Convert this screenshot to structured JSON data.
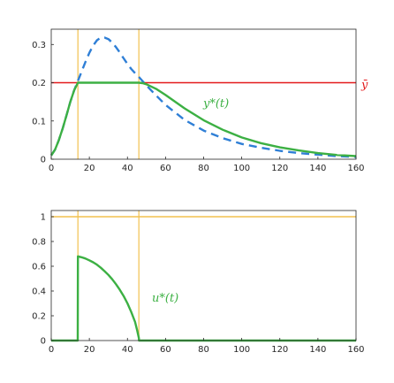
{
  "chart_data": [
    {
      "type": "line",
      "title": "",
      "xlabel": "",
      "ylabel": "",
      "xlim": [
        0,
        160
      ],
      "ylim": [
        0,
        0.34
      ],
      "x_ticks": [
        "0",
        "20",
        "40",
        "60",
        "80",
        "100",
        "120",
        "140",
        "160"
      ],
      "y_ticks": [
        "0",
        "0.1",
        "0.2",
        "0.3"
      ],
      "grid": false,
      "vlines": [
        14,
        46
      ],
      "hline": {
        "value": 0.2,
        "label": "ȳ",
        "color": "#e31a1c"
      },
      "series": [
        {
          "label": "y*(t)",
          "style": "solid",
          "color": "#3cb043",
          "x": [
            0,
            2,
            4,
            6,
            8,
            10,
            12,
            14,
            20,
            30,
            40,
            46,
            48,
            50,
            55,
            60,
            70,
            80,
            90,
            100,
            110,
            120,
            130,
            140,
            150,
            160
          ],
          "values": [
            0.01,
            0.025,
            0.05,
            0.08,
            0.115,
            0.15,
            0.18,
            0.2,
            0.2,
            0.2,
            0.2,
            0.2,
            0.199,
            0.196,
            0.184,
            0.168,
            0.133,
            0.102,
            0.077,
            0.057,
            0.042,
            0.031,
            0.023,
            0.016,
            0.011,
            0.008
          ]
        },
        {
          "label": "",
          "style": "dashed",
          "color": "#2f7fd6",
          "x": [
            0,
            2,
            4,
            6,
            8,
            10,
            12,
            14,
            16,
            18,
            20,
            22,
            24,
            26,
            28,
            30,
            32,
            34,
            36,
            38,
            40,
            42,
            44,
            46,
            50,
            55,
            60,
            70,
            80,
            90,
            100,
            110,
            120,
            130,
            140,
            150,
            160
          ],
          "values": [
            0.01,
            0.025,
            0.05,
            0.08,
            0.115,
            0.15,
            0.18,
            0.205,
            0.23,
            0.255,
            0.278,
            0.297,
            0.311,
            0.318,
            0.318,
            0.314,
            0.305,
            0.293,
            0.279,
            0.264,
            0.249,
            0.236,
            0.225,
            0.215,
            0.193,
            0.167,
            0.142,
            0.103,
            0.075,
            0.055,
            0.04,
            0.03,
            0.022,
            0.016,
            0.012,
            0.008,
            0.006
          ]
        }
      ]
    },
    {
      "type": "line",
      "title": "",
      "xlabel": "",
      "ylabel": "",
      "xlim": [
        0,
        160
      ],
      "ylim": [
        0,
        1.05
      ],
      "x_ticks": [
        "0",
        "20",
        "40",
        "60",
        "80",
        "100",
        "120",
        "140",
        "160"
      ],
      "y_ticks": [
        "0",
        "0.2",
        "0.4",
        "0.6",
        "0.8",
        "1"
      ],
      "grid": false,
      "vlines": [
        14,
        46
      ],
      "hline": {
        "value": 1,
        "label": "",
        "color": "#f2c14e"
      },
      "series": [
        {
          "label": "u*(t)",
          "style": "solid",
          "color": "#3cb043",
          "x": [
            0,
            13.9,
            14,
            16,
            18,
            20,
            22,
            24,
            26,
            28,
            30,
            32,
            34,
            36,
            38,
            40,
            42,
            44,
            45,
            46,
            46.1,
            160
          ],
          "values": [
            0,
            0,
            0.68,
            0.672,
            0.662,
            0.648,
            0.632,
            0.612,
            0.588,
            0.56,
            0.53,
            0.495,
            0.455,
            0.41,
            0.36,
            0.3,
            0.23,
            0.15,
            0.09,
            0.02,
            0,
            0
          ]
        }
      ]
    }
  ]
}
